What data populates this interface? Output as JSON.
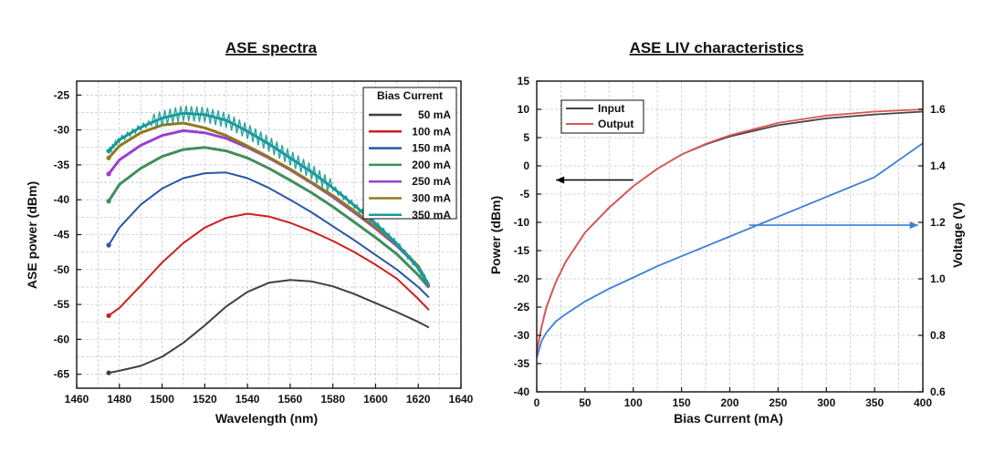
{
  "chart_data": [
    {
      "type": "line",
      "title": "ASE spectra",
      "xlabel": "Wavelength (nm)",
      "ylabel": "ASE power (dBm)",
      "xlim": [
        1460,
        1640
      ],
      "ylim": [
        -67,
        -23
      ],
      "xticks": [
        "1460",
        "1480",
        "1500",
        "1520",
        "1540",
        "1560",
        "1580",
        "1600",
        "1620",
        "1640"
      ],
      "yticks": [
        "-25",
        "-30",
        "-35",
        "-40",
        "-45",
        "-50",
        "-55",
        "-60",
        "-65"
      ],
      "grid": true,
      "legend_title": "Bias Current",
      "legend_position": "top-right",
      "x": [
        1475,
        1480,
        1490,
        1500,
        1510,
        1520,
        1530,
        1540,
        1550,
        1560,
        1570,
        1580,
        1590,
        1600,
        1610,
        1620,
        1625
      ],
      "series": [
        {
          "name": "50 mA",
          "color": "#404040",
          "values": [
            -64.8,
            -64.5,
            -63.8,
            -62.5,
            -60.5,
            -58.0,
            -55.3,
            -53.2,
            -51.9,
            -51.5,
            -51.7,
            -52.4,
            -53.5,
            -54.8,
            -56.1,
            -57.5,
            -58.3
          ]
        },
        {
          "name": "100 mA",
          "color": "#cc1f1f",
          "values": [
            -56.6,
            -55.5,
            -52.3,
            -49.0,
            -46.2,
            -44.0,
            -42.6,
            -42.0,
            -42.4,
            -43.3,
            -44.5,
            -45.9,
            -47.5,
            -49.3,
            -51.3,
            -54.2,
            -55.8
          ]
        },
        {
          "name": "150 mA",
          "color": "#2a55a8",
          "values": [
            -46.5,
            -44.0,
            -40.7,
            -38.4,
            -36.9,
            -36.2,
            -36.1,
            -36.9,
            -38.3,
            -40.0,
            -41.8,
            -43.8,
            -45.8,
            -47.9,
            -50.0,
            -52.5,
            -54.0
          ]
        },
        {
          "name": "200 mA",
          "color": "#3f8f5a",
          "values": [
            -40.2,
            -37.8,
            -35.5,
            -33.8,
            -32.8,
            -32.5,
            -33.0,
            -34.0,
            -35.5,
            -37.2,
            -39.0,
            -41.0,
            -43.2,
            -45.4,
            -47.8,
            -50.8,
            -52.6
          ]
        },
        {
          "name": "250 mA",
          "color": "#9a3fd0",
          "values": [
            -36.3,
            -34.3,
            -32.2,
            -30.8,
            -30.1,
            -30.4,
            -31.2,
            -32.5,
            -34.0,
            -35.7,
            -37.6,
            -39.6,
            -41.8,
            -44.1,
            -46.6,
            -49.6,
            -52.5
          ]
        },
        {
          "name": "300 mA",
          "color": "#8f7a1e",
          "values": [
            -34.0,
            -32.3,
            -30.4,
            -29.3,
            -29.0,
            -29.7,
            -30.8,
            -32.3,
            -33.9,
            -35.6,
            -37.5,
            -39.4,
            -41.6,
            -43.9,
            -46.4,
            -49.5,
            -52.3
          ]
        },
        {
          "name": "350 mA",
          "color": "#1a9a9a",
          "values": [
            -33.0,
            -31.4,
            -29.6,
            -28.3,
            -27.6,
            -27.8,
            -28.6,
            -30.2,
            -32.0,
            -34.0,
            -36.0,
            -38.3,
            -40.8,
            -43.4,
            -46.3,
            -49.8,
            -52.2
          ]
        }
      ]
    },
    {
      "type": "line",
      "title": "ASE LIV characteristics",
      "xlabel": "Bias Current (mA)",
      "ylabel": "Power (dBm)",
      "y2label": "Voltage (V)",
      "xlim": [
        0,
        400
      ],
      "ylim": [
        -40,
        15
      ],
      "y2lim": [
        0.6,
        1.7
      ],
      "xticks": [
        "0",
        "50",
        "100",
        "150",
        "200",
        "250",
        "300",
        "350",
        "400"
      ],
      "yticks": [
        "15",
        "10",
        "5",
        "0",
        "-5",
        "-10",
        "-15",
        "-20",
        "-25",
        "-30",
        "-35",
        "-40"
      ],
      "y2ticks": [
        "1.6",
        "1.4",
        "1.2",
        "1.0",
        "0.8",
        "0.6"
      ],
      "grid": true,
      "legend_position": "top-left",
      "x": [
        0,
        5,
        10,
        20,
        30,
        50,
        75,
        100,
        125,
        150,
        175,
        200,
        250,
        300,
        350,
        400
      ],
      "series": [
        {
          "name": "Input",
          "color": "#444444",
          "axis": "left",
          "values": [
            -33,
            -28.5,
            -25,
            -20.5,
            -17.0,
            -11.8,
            -7.4,
            -3.6,
            -0.5,
            2.0,
            3.8,
            5.2,
            7.2,
            8.4,
            9.1,
            9.6
          ]
        },
        {
          "name": "Output",
          "color": "#e05555",
          "axis": "left",
          "values": [
            -33,
            -28.5,
            -25,
            -20.5,
            -17.0,
            -11.8,
            -7.4,
            -3.6,
            -0.5,
            2.0,
            3.9,
            5.4,
            7.6,
            8.9,
            9.6,
            10.0
          ]
        },
        {
          "color": "#3a7fd8",
          "axis": "right",
          "values": [
            0.72,
            0.78,
            0.81,
            0.85,
            0.875,
            0.92,
            0.965,
            1.005,
            1.045,
            1.08,
            1.115,
            1.15,
            1.22,
            1.29,
            1.36,
            1.48
          ]
        }
      ],
      "arrows": [
        {
          "direction": "left",
          "color": "#000000",
          "from": [
            100,
            -2.5
          ],
          "to": [
            20,
            -2.5
          ]
        },
        {
          "direction": "right",
          "color": "#3a7fd8",
          "from": [
            220,
            1.19
          ],
          "to": [
            395,
            1.19
          ]
        }
      ]
    }
  ]
}
